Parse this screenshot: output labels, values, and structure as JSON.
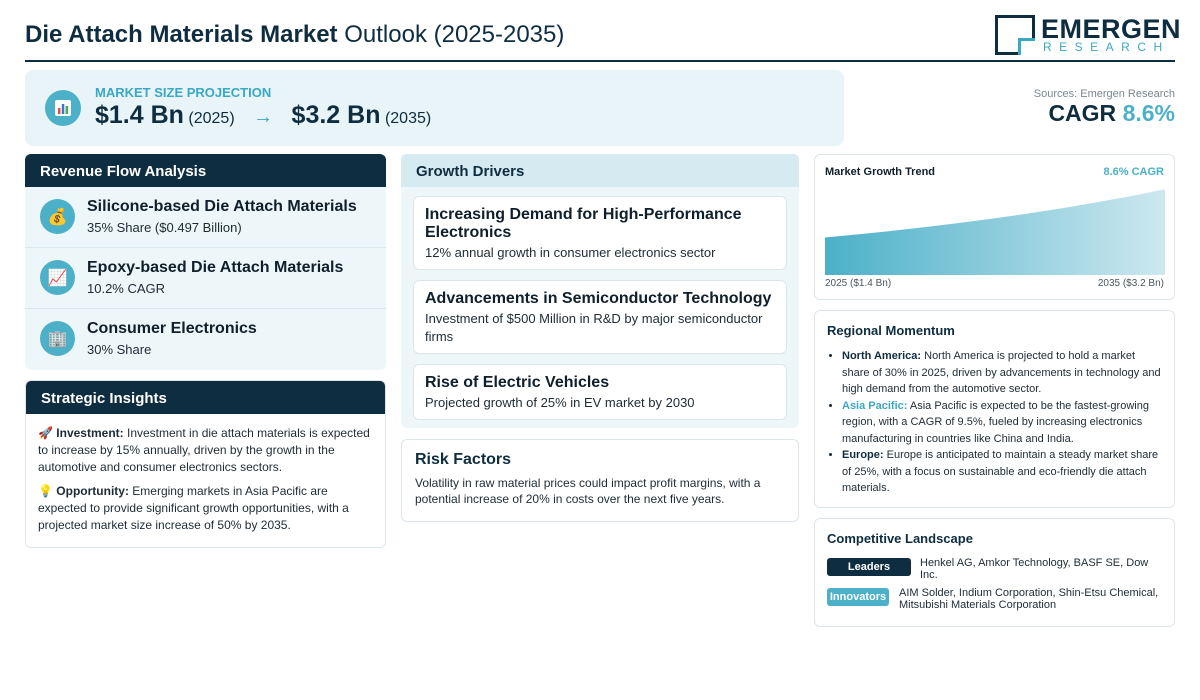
{
  "header": {
    "title_bold": "Die Attach Materials Market",
    "title_rest": "Outlook (2025-2035)",
    "logo_name": "EMERGEN",
    "logo_sub": "RESEARCH"
  },
  "projection": {
    "label": "MARKET SIZE PROJECTION",
    "start_value": "$1.4 Bn",
    "start_year": "(2025)",
    "arrow": "→",
    "end_value": "$3.2 Bn",
    "end_year": "(2035)",
    "icon": "bar-chart-icon"
  },
  "sources": "Sources: Emergen Research",
  "cagr": {
    "label": "CAGR",
    "value": "8.6%"
  },
  "revenue_flow": {
    "title": "Revenue Flow Analysis",
    "items": [
      {
        "name": "Silicone-based Die Attach Materials",
        "value": "35% Share ($0.497 Billion)",
        "icon": "money-bag-icon",
        "glyph": "💰"
      },
      {
        "name": "Epoxy-based Die Attach Materials",
        "value": "10.2% CAGR",
        "icon": "trend-chart-icon",
        "glyph": "📈"
      },
      {
        "name": "Consumer Electronics",
        "value": "30% Share",
        "icon": "building-icon",
        "glyph": "🏢"
      }
    ]
  },
  "strategic": {
    "title": "Strategic Insights",
    "investment_label": "Investment:",
    "investment_text": "Investment in die attach materials is expected to increase by 15% annually, driven by the growth in the automotive and consumer electronics sectors.",
    "investment_glyph": "🚀",
    "opportunity_label": "Opportunity:",
    "opportunity_text": "Emerging markets in Asia Pacific are expected to provide significant growth opportunities, with a projected market size increase of 50% by 2035.",
    "opportunity_glyph": "💡"
  },
  "drivers": {
    "title": "Growth Drivers",
    "items": [
      {
        "title": "Increasing Demand for High-Performance Electronics",
        "desc": "12% annual growth in consumer electronics sector"
      },
      {
        "title": "Advancements in Semiconductor Technology",
        "desc": "Investment of $500 Million in R&D by major semiconductor firms"
      },
      {
        "title": "Rise of Electric Vehicles",
        "desc": "Projected growth of 25% in EV market by 2030"
      }
    ]
  },
  "risk": {
    "title": "Risk Factors",
    "text": "Volatility in raw material prices could impact profit margins, with a potential increase of 20% in costs over the next five years."
  },
  "trend": {
    "title": "Market Growth Trend",
    "cagr": "8.6% CAGR",
    "start_label": "2025 ($1.4 Bn)",
    "end_label": "2035 ($3.2 Bn)"
  },
  "chart_data": {
    "type": "area",
    "x": [
      2025,
      2035
    ],
    "values": [
      1.4,
      3.2
    ],
    "title": "Market Growth Trend",
    "color": "#4bb0c8"
  },
  "regional": {
    "title": "Regional Momentum",
    "items": [
      {
        "region": "North America:",
        "text": "North America is projected to hold a market share of 30% in 2025, driven by advancements in technology and high demand from the automotive sector."
      },
      {
        "region": "Asia Pacific:",
        "text": "Asia Pacific is expected to be the fastest-growing region, with a CAGR of 9.5%, fueled by increasing electronics manufacturing in countries like China and India."
      },
      {
        "region": "Europe:",
        "text": "Europe is anticipated to maintain a steady market share of 25%, with a focus on sustainable and eco-friendly die attach materials."
      }
    ]
  },
  "competitive": {
    "title": "Competitive Landscape",
    "leaders_label": "Leaders",
    "leaders": "Henkel AG, Amkor Technology, BASF SE, Dow Inc.",
    "innovators_label": "Innovators",
    "innovators": "AIM Solder, Indium Corporation, Shin-Etsu Chemical, Mitsubishi Materials Corporation"
  },
  "colors": {
    "navy": "#0f2d40",
    "accent": "#4bb0c8",
    "panel_bg": "#edf6f8"
  }
}
